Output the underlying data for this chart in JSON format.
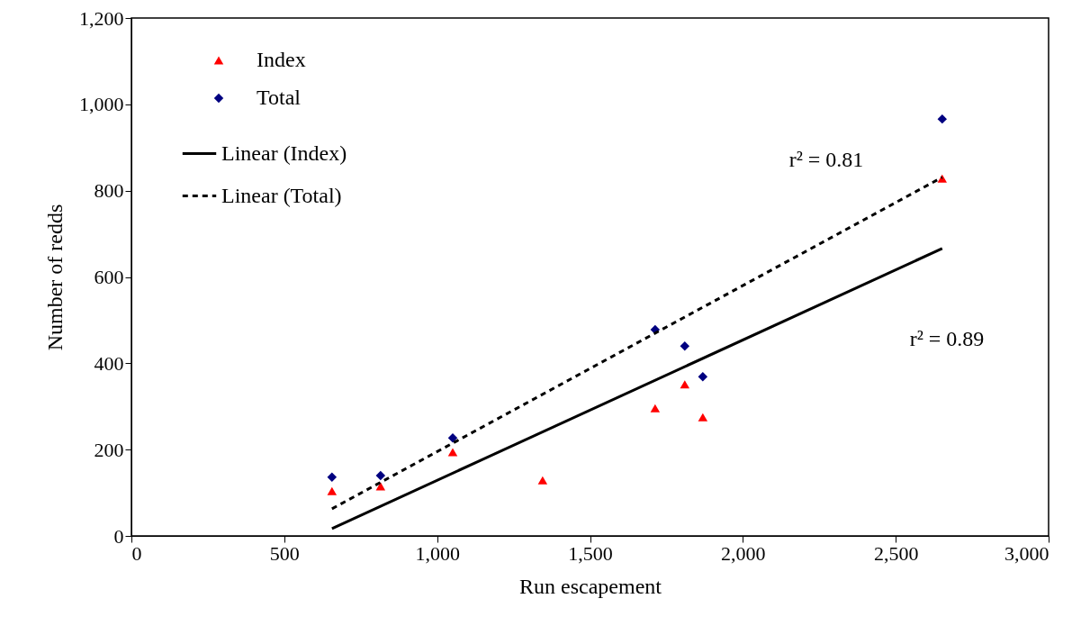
{
  "chart_data": {
    "type": "scatter",
    "xlabel": "Run escapement",
    "ylabel": "Number of redds",
    "xlim": [
      0,
      3000
    ],
    "xticks": [
      0,
      500,
      {
        "value": 1000,
        "label": "1,000"
      },
      {
        "value": 1500,
        "label": "1,500"
      },
      {
        "value": 2000,
        "label": "2,000"
      },
      {
        "value": 2500,
        "label": "2,500"
      },
      {
        "value": 3000,
        "label": "3,000"
      }
    ],
    "ylim": [
      0,
      1200
    ],
    "yticks": [
      0,
      200,
      400,
      600,
      800,
      {
        "value": 1000,
        "label": "1,000"
      },
      {
        "value": 1200,
        "label": "1,200"
      }
    ],
    "grid": false,
    "legend": "top left",
    "series": [
      {
        "name": "Index",
        "type": "scatter",
        "marker": "triangle",
        "color": "#ff0000",
        "x": [
          656,
          815,
          1051,
          1345,
          1713,
          1810,
          1869,
          2652
        ],
        "values": [
          104,
          115,
          194,
          129,
          296,
          351,
          275,
          828
        ]
      },
      {
        "name": "Total",
        "type": "scatter",
        "marker": "diamond",
        "color": "#000080",
        "x": [
          656,
          815,
          1051,
          1713,
          1810,
          1869,
          2652
        ],
        "values": [
          136,
          140,
          227,
          478,
          440,
          369,
          966
        ]
      },
      {
        "name": "Linear (Index)",
        "type": "line",
        "line_style": "solid",
        "color": "#000000",
        "x": [
          656,
          2652
        ],
        "values": [
          17,
          666
        ]
      },
      {
        "name": "Linear (Total)",
        "type": "line",
        "line_style": "dashed",
        "color": "#000000",
        "x": [
          656,
          2652
        ],
        "values": [
          63,
          831
        ]
      }
    ],
    "annotations": [
      "r² = 0.81",
      "r² = 0.89"
    ]
  }
}
